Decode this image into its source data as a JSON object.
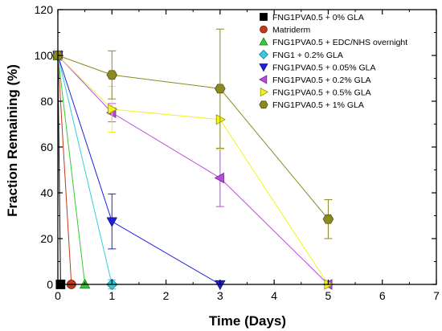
{
  "chart_data": {
    "type": "line",
    "xlabel": "Time (Days)",
    "ylabel": "Fraction Remaining (%)",
    "xlim": [
      0,
      7
    ],
    "ylim": [
      0,
      120
    ],
    "xticks": [
      0,
      1,
      2,
      3,
      4,
      5,
      6,
      7
    ],
    "yticks": [
      0,
      20,
      40,
      60,
      80,
      100,
      120
    ],
    "grid": false,
    "legend_position": "top-right",
    "series": [
      {
        "name": "FNG1PVA0.5 + 0% GLA",
        "color": "#000000",
        "marker": "square",
        "points": [
          {
            "x": 0,
            "y": 100
          },
          {
            "x": 0.05,
            "y": 0
          }
        ]
      },
      {
        "name": "Matriderm",
        "color": "#c0391b",
        "marker": "circle",
        "points": [
          {
            "x": 0,
            "y": 100
          },
          {
            "x": 0.25,
            "y": 0
          }
        ]
      },
      {
        "name": "FNG1PVA0.5 + EDC/NHS overnight",
        "color": "#33cc33",
        "marker": "triangle-up",
        "points": [
          {
            "x": 0,
            "y": 100
          },
          {
            "x": 0.5,
            "y": 0
          }
        ]
      },
      {
        "name": "FNG1 + 0.2% GLA",
        "color": "#33ccdd",
        "marker": "diamond",
        "points": [
          {
            "x": 0,
            "y": 100
          },
          {
            "x": 1,
            "y": 0,
            "err": 2
          }
        ]
      },
      {
        "name": "FNG1PVA0.5 + 0.05% GLA",
        "color": "#1f1fdd",
        "marker": "triangle-down",
        "points": [
          {
            "x": 0,
            "y": 100
          },
          {
            "x": 1,
            "y": 27.5,
            "err": 12
          },
          {
            "x": 3,
            "y": 0
          }
        ]
      },
      {
        "name": "FNG1PVA0.5 + 0.2% GLA",
        "color": "#b84ae0",
        "marker": "triangle-left",
        "points": [
          {
            "x": 0,
            "y": 100
          },
          {
            "x": 1,
            "y": 75,
            "err": 4
          },
          {
            "x": 3,
            "y": 46.5,
            "err": 12.5
          },
          {
            "x": 5,
            "y": 0
          }
        ]
      },
      {
        "name": "FNG1PVA0.5 + 0.5% GLA",
        "color": "#f2f21a",
        "marker": "triangle-right",
        "points": [
          {
            "x": 0,
            "y": 100
          },
          {
            "x": 1,
            "y": 76.5,
            "err": 10
          },
          {
            "x": 3,
            "y": 72,
            "err": 13
          },
          {
            "x": 5,
            "y": 0
          }
        ]
      },
      {
        "name": "FNG1PVA0.5 + 1% GLA",
        "color": "#8a8a20",
        "marker": "hexagon",
        "points": [
          {
            "x": 0,
            "y": 100
          },
          {
            "x": 1,
            "y": 91.5,
            "err": 10.5
          },
          {
            "x": 3,
            "y": 85.5,
            "err": 26
          },
          {
            "x": 5,
            "y": 28.5,
            "err": 8.5
          }
        ]
      }
    ]
  }
}
